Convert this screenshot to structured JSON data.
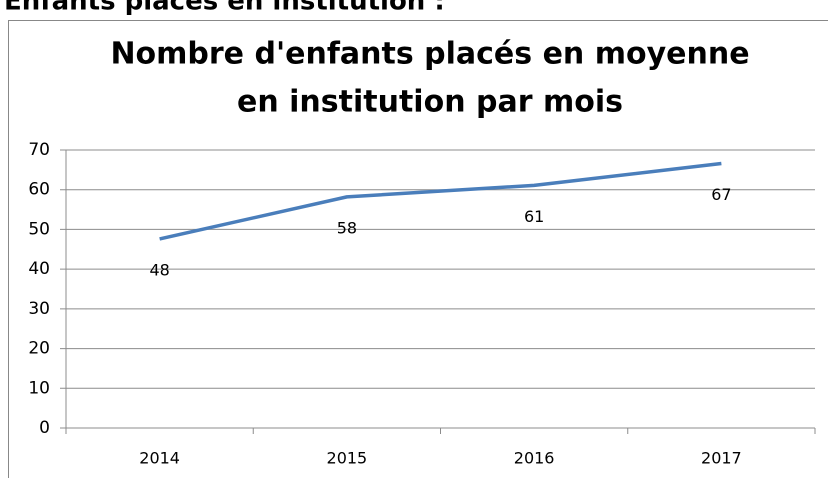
{
  "heading": "Enfants placés en institution :",
  "chart_data": {
    "type": "line",
    "title": [
      "Nombre d'enfants placés en moyenne",
      "en institution par mois"
    ],
    "categories": [
      "2014",
      "2015",
      "2016",
      "2017"
    ],
    "series": [
      {
        "name": null,
        "color": "#4a7ebb",
        "values": [
          47.6,
          58.2,
          61.1,
          66.6
        ],
        "value_labels": [
          "48",
          "58",
          "61",
          "67"
        ]
      }
    ],
    "ylim": [
      0,
      70
    ],
    "yticks": [
      0,
      10,
      20,
      30,
      40,
      50,
      60,
      70
    ],
    "grid": true
  }
}
